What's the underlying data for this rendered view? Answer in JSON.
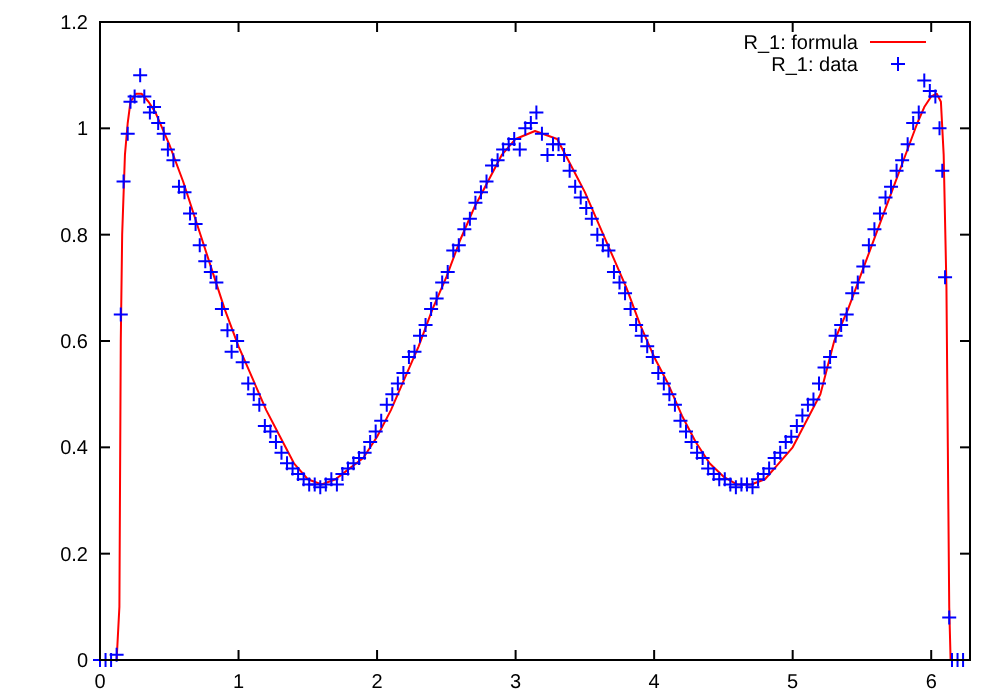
{
  "chart_data": {
    "type": "scatter",
    "xlim": [
      0,
      6.28
    ],
    "ylim": [
      0,
      1.2
    ],
    "xticks": [
      0,
      1,
      2,
      3,
      4,
      5,
      6
    ],
    "yticks": [
      0,
      0.2,
      0.4,
      0.6,
      0.8,
      1,
      1.2
    ],
    "grid": false,
    "legend": "top right",
    "series": [
      {
        "name": "R_1: formula",
        "type": "line",
        "color": "#ff0000",
        "marker": "none",
        "x": [
          0.12,
          0.14,
          0.15,
          0.16,
          0.18,
          0.2,
          0.22,
          0.26,
          0.3,
          0.35,
          0.4,
          0.5,
          0.6,
          0.7,
          0.8,
          0.9,
          1.0,
          1.1,
          1.2,
          1.3,
          1.4,
          1.5,
          1.6,
          1.7,
          1.8,
          1.9,
          2.0,
          2.1,
          2.2,
          2.3,
          2.4,
          2.5,
          2.6,
          2.7,
          2.8,
          2.9,
          3.0,
          3.14,
          3.3,
          3.4,
          3.5,
          3.6,
          3.7,
          3.8,
          3.9,
          4.0,
          4.1,
          4.2,
          4.3,
          4.4,
          4.5,
          4.6,
          4.7,
          4.8,
          4.9,
          5.0,
          5.1,
          5.2,
          5.3,
          5.4,
          5.5,
          5.6,
          5.7,
          5.8,
          5.9,
          5.95,
          6.0,
          6.04,
          6.07,
          6.09,
          6.11,
          6.12,
          6.13,
          6.14
        ],
        "values": [
          0,
          0.1,
          0.6,
          0.8,
          0.95,
          1.01,
          1.05,
          1.065,
          1.065,
          1.05,
          1.03,
          0.97,
          0.9,
          0.82,
          0.74,
          0.66,
          0.59,
          0.53,
          0.47,
          0.42,
          0.37,
          0.34,
          0.33,
          0.34,
          0.36,
          0.38,
          0.42,
          0.47,
          0.53,
          0.59,
          0.66,
          0.72,
          0.79,
          0.85,
          0.9,
          0.95,
          0.98,
          0.995,
          0.98,
          0.93,
          0.88,
          0.82,
          0.76,
          0.7,
          0.63,
          0.57,
          0.52,
          0.46,
          0.41,
          0.37,
          0.345,
          0.33,
          0.33,
          0.34,
          0.37,
          0.4,
          0.45,
          0.5,
          0.6,
          0.66,
          0.73,
          0.8,
          0.87,
          0.94,
          1.01,
          1.04,
          1.06,
          1.065,
          1.05,
          0.95,
          0.7,
          0.4,
          0.1,
          0
        ]
      },
      {
        "name": "R_1: data",
        "color": "#0000ff",
        "marker": "cross",
        "x": [
          0,
          0.04,
          0.08,
          0.12,
          0.15,
          0.17,
          0.2,
          0.22,
          0.25,
          0.29,
          0.32,
          0.36,
          0.39,
          0.42,
          0.46,
          0.49,
          0.53,
          0.57,
          0.61,
          0.65,
          0.69,
          0.72,
          0.76,
          0.8,
          0.84,
          0.88,
          0.92,
          0.95,
          0.99,
          1.03,
          1.07,
          1.11,
          1.15,
          1.19,
          1.23,
          1.27,
          1.31,
          1.35,
          1.39,
          1.43,
          1.47,
          1.51,
          1.55,
          1.59,
          1.63,
          1.67,
          1.71,
          1.75,
          1.79,
          1.83,
          1.87,
          1.91,
          1.95,
          1.99,
          2.03,
          2.07,
          2.11,
          2.15,
          2.19,
          2.23,
          2.27,
          2.31,
          2.35,
          2.39,
          2.43,
          2.47,
          2.51,
          2.55,
          2.59,
          2.63,
          2.67,
          2.71,
          2.75,
          2.79,
          2.83,
          2.87,
          2.91,
          2.95,
          2.99,
          3.03,
          3.07,
          3.11,
          3.15,
          3.19,
          3.23,
          3.27,
          3.31,
          3.35,
          3.39,
          3.43,
          3.47,
          3.51,
          3.55,
          3.59,
          3.63,
          3.67,
          3.71,
          3.75,
          3.79,
          3.83,
          3.87,
          3.91,
          3.95,
          3.99,
          4.03,
          4.07,
          4.11,
          4.15,
          4.19,
          4.23,
          4.27,
          4.31,
          4.35,
          4.39,
          4.43,
          4.47,
          4.51,
          4.55,
          4.59,
          4.63,
          4.67,
          4.71,
          4.75,
          4.79,
          4.83,
          4.87,
          4.91,
          4.95,
          4.99,
          5.03,
          5.07,
          5.11,
          5.15,
          5.19,
          5.23,
          5.27,
          5.31,
          5.35,
          5.39,
          5.43,
          5.47,
          5.51,
          5.55,
          5.59,
          5.63,
          5.67,
          5.71,
          5.75,
          5.79,
          5.83,
          5.87,
          5.91,
          5.95,
          5.99,
          6.03,
          6.06,
          6.08,
          6.1,
          6.13,
          6.15,
          6.19,
          6.23
        ],
        "values": [
          0,
          0,
          0,
          0.01,
          0.65,
          0.9,
          0.99,
          1.05,
          1.06,
          1.1,
          1.06,
          1.03,
          1.04,
          1.01,
          0.99,
          0.96,
          0.94,
          0.89,
          0.88,
          0.84,
          0.82,
          0.78,
          0.75,
          0.73,
          0.71,
          0.66,
          0.62,
          0.58,
          0.6,
          0.56,
          0.52,
          0.5,
          0.48,
          0.44,
          0.43,
          0.41,
          0.39,
          0.37,
          0.36,
          0.35,
          0.34,
          0.33,
          0.33,
          0.325,
          0.33,
          0.34,
          0.33,
          0.35,
          0.36,
          0.37,
          0.38,
          0.39,
          0.41,
          0.43,
          0.45,
          0.48,
          0.5,
          0.52,
          0.54,
          0.57,
          0.58,
          0.61,
          0.63,
          0.66,
          0.68,
          0.71,
          0.73,
          0.77,
          0.78,
          0.81,
          0.83,
          0.86,
          0.88,
          0.9,
          0.93,
          0.94,
          0.96,
          0.97,
          0.98,
          0.96,
          1,
          1.01,
          1.03,
          0.99,
          0.95,
          0.97,
          0.97,
          0.95,
          0.92,
          0.89,
          0.87,
          0.85,
          0.83,
          0.8,
          0.78,
          0.77,
          0.73,
          0.71,
          0.69,
          0.66,
          0.63,
          0.61,
          0.59,
          0.57,
          0.54,
          0.52,
          0.5,
          0.48,
          0.45,
          0.43,
          0.41,
          0.39,
          0.38,
          0.36,
          0.35,
          0.34,
          0.34,
          0.33,
          0.325,
          0.33,
          0.33,
          0.325,
          0.34,
          0.35,
          0.36,
          0.38,
          0.39,
          0.41,
          0.42,
          0.44,
          0.46,
          0.48,
          0.49,
          0.52,
          0.55,
          0.57,
          0.61,
          0.63,
          0.65,
          0.69,
          0.71,
          0.74,
          0.78,
          0.81,
          0.84,
          0.87,
          0.89,
          0.92,
          0.94,
          0.97,
          1.01,
          1.03,
          1.09,
          1.07,
          1.06,
          1,
          0.92,
          0.72,
          0.08,
          0,
          0,
          0
        ]
      }
    ]
  }
}
